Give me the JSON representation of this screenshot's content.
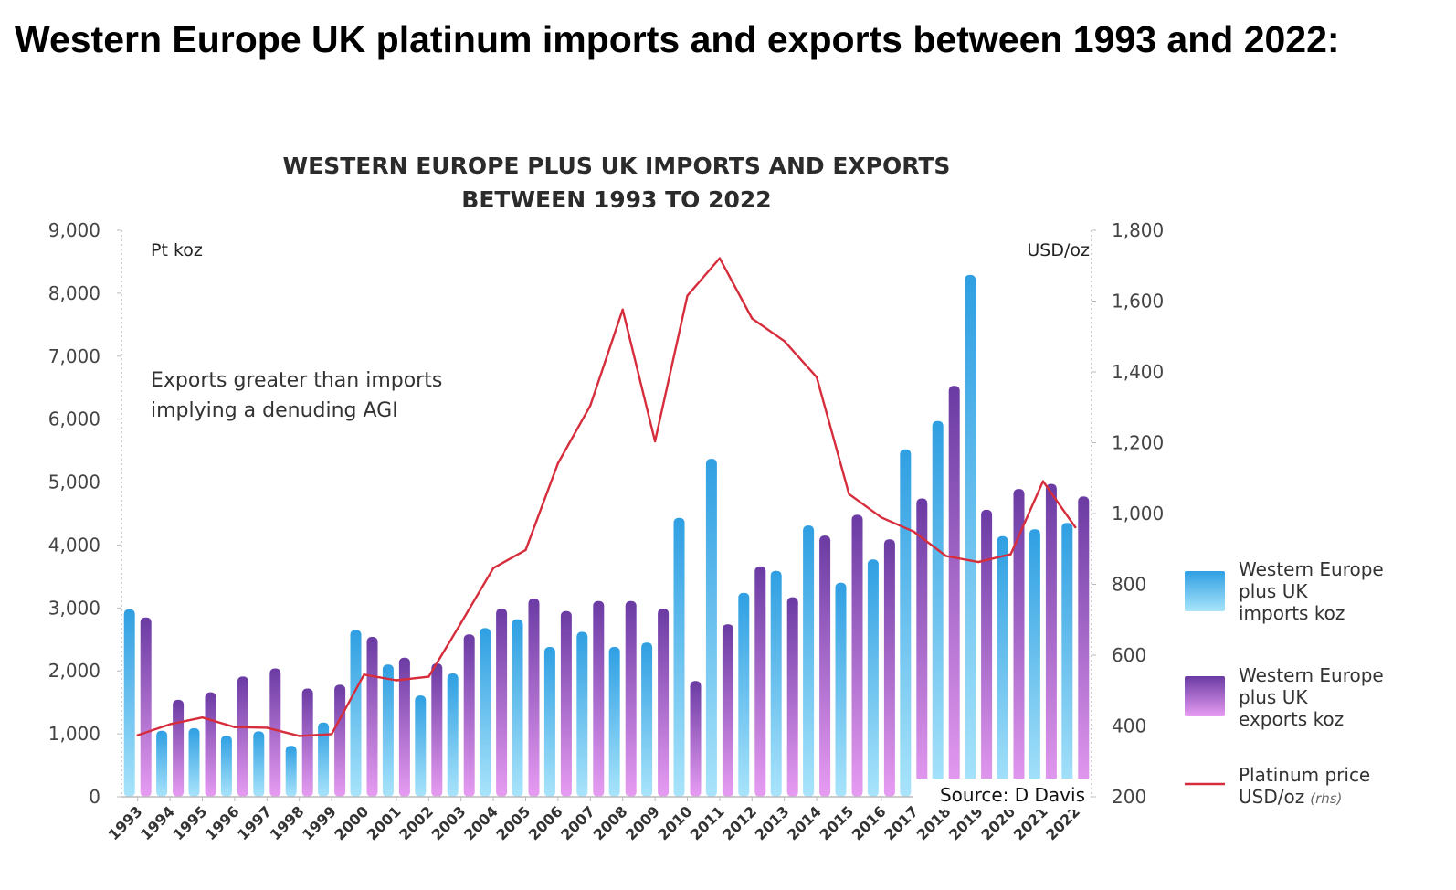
{
  "heading": "Western Europe UK platinum imports and exports between 1993 and 2022:",
  "chart_data": {
    "type": "bar",
    "title_line1": "WESTERN EUROPE PLUS UK IMPORTS AND EXPORTS",
    "title_line2": "BETWEEN 1993 TO 2022",
    "left_unit": "Pt koz",
    "right_unit": "USD/oz",
    "annotation_line1": "Exports greater than imports",
    "annotation_line2": "implying a denuding AGI",
    "source": "Source: D Davis",
    "categories": [
      "1993",
      "1994",
      "1995",
      "1996",
      "1997",
      "1998",
      "1999",
      "2000",
      "2001",
      "2002",
      "2003",
      "2004",
      "2005",
      "2006",
      "2007",
      "2008",
      "2009",
      "2010",
      "2011",
      "2012",
      "2013",
      "2014",
      "2015",
      "2016",
      "2017",
      "2018",
      "2019",
      "2020",
      "2021",
      "2022"
    ],
    "y_left_ticks": [
      "0",
      "1,000",
      "2,000",
      "3,000",
      "4,000",
      "5,000",
      "6,000",
      "7,000",
      "8,000",
      "9,000"
    ],
    "y_right_ticks": [
      "200",
      "400",
      "600",
      "800",
      "1,000",
      "1,200",
      "1,400",
      "1,600",
      "1,800"
    ],
    "y_left_lim": [
      0,
      9000
    ],
    "y_right_lim": [
      200,
      1800
    ],
    "series": [
      {
        "name_lines": [
          "Western Europe",
          "plus UK",
          "imports koz"
        ],
        "axis": "left",
        "color_top": "#2f9fe2",
        "color_bottom": "#a9e4fb",
        "values": [
          2980,
          1050,
          1090,
          970,
          1040,
          810,
          1180,
          2650,
          2100,
          1610,
          1960,
          2680,
          2820,
          2380,
          2620,
          2380,
          2450,
          4430,
          5370,
          3240,
          3590,
          4310,
          3400,
          3770,
          5520,
          5970,
          8290,
          4140,
          4250,
          4350
        ]
      },
      {
        "name_lines": [
          "Western Europe",
          "plus UK",
          "exports koz"
        ],
        "axis": "left",
        "color_top": "#6a3ba3",
        "color_bottom": "#e79cf2",
        "values": [
          2850,
          1540,
          1660,
          1910,
          2040,
          1720,
          1780,
          2540,
          2210,
          2120,
          2580,
          2990,
          3150,
          2950,
          3110,
          3110,
          2990,
          1840,
          2740,
          3660,
          3170,
          4150,
          4480,
          4090,
          4740,
          6530,
          4560,
          4890,
          4970,
          4770
        ]
      },
      {
        "name_lines": [
          "Platinum price",
          "USD/oz"
        ],
        "name_suffix": "(rhs)",
        "axis": "right",
        "type": "line",
        "color": "#d62d3c",
        "values": [
          374,
          405,
          424,
          397,
          395,
          372,
          377,
          545,
          529,
          539,
          691,
          846,
          897,
          1142,
          1305,
          1576,
          1204,
          1615,
          1721,
          1551,
          1487,
          1385,
          1055,
          989,
          949,
          880,
          863,
          885,
          1091,
          961
        ]
      }
    ],
    "grid": false,
    "legend_position": "right"
  }
}
